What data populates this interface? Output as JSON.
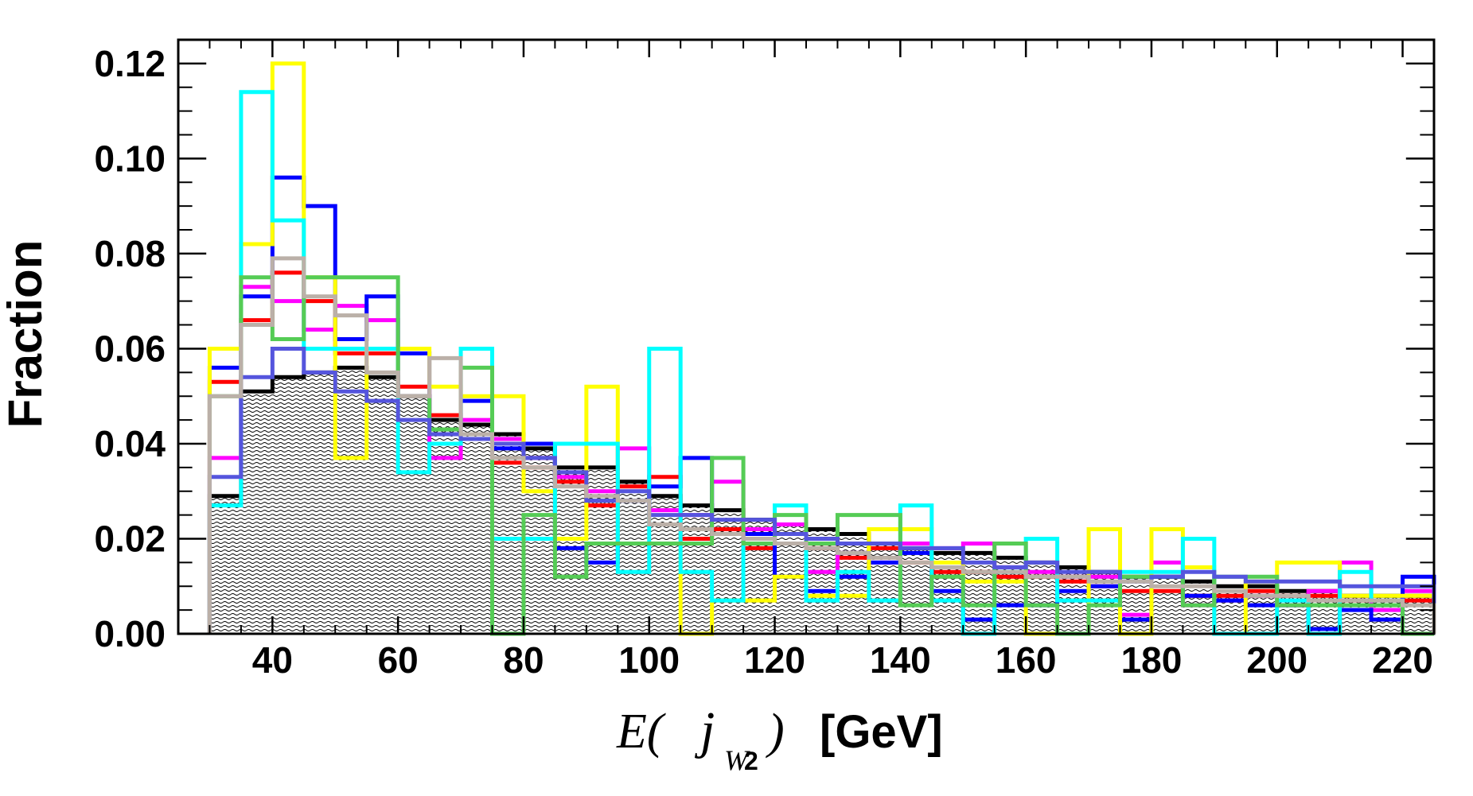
{
  "chart_data": {
    "type": "histogram",
    "ylabel": "Fraction",
    "xlabel": {
      "prefix": "E(",
      "symbol": "j",
      "subscript_w": "W",
      "subscript_2": "2",
      "suffix": ")",
      "unit": "[GeV]"
    },
    "xlim": [
      25,
      225
    ],
    "ylim": [
      0,
      0.125
    ],
    "x_ticks": [
      40,
      60,
      80,
      100,
      120,
      140,
      160,
      180,
      200,
      220
    ],
    "y_ticks": [
      "0.00",
      "0.02",
      "0.04",
      "0.06",
      "0.08",
      "0.10",
      "0.12"
    ],
    "y_tick_values": [
      0,
      0.02,
      0.04,
      0.06,
      0.08,
      0.1,
      0.12
    ],
    "bin_edges": [
      30,
      35,
      40,
      45,
      50,
      55,
      60,
      65,
      70,
      75,
      80,
      85,
      90,
      95,
      100,
      105,
      110,
      115,
      120,
      125,
      130,
      135,
      140,
      145,
      150,
      155,
      160,
      165,
      170,
      175,
      180,
      185,
      190,
      195,
      200,
      205,
      210,
      215,
      220,
      225
    ],
    "series": [
      {
        "color": "#000000",
        "filled": true,
        "values": [
          0.029,
          0.051,
          0.054,
          0.055,
          0.056,
          0.054,
          0.05,
          0.045,
          0.044,
          0.042,
          0.039,
          0.035,
          0.035,
          0.032,
          0.029,
          0.027,
          0.026,
          0.024,
          0.023,
          0.022,
          0.021,
          0.019,
          0.018,
          0.017,
          0.017,
          0.016,
          0.015,
          0.014,
          0.013,
          0.012,
          0.012,
          0.011,
          0.01,
          0.01,
          0.009,
          0.009,
          0.008,
          0.008,
          0.008
        ]
      },
      {
        "color": "#ff0000",
        "filled": false,
        "values": [
          0.053,
          0.066,
          0.076,
          0.07,
          0.059,
          0.059,
          0.052,
          0.046,
          0.042,
          0.036,
          0.035,
          0.032,
          0.027,
          0.031,
          0.033,
          0.02,
          0.022,
          0.018,
          0.021,
          0.018,
          0.016,
          0.018,
          0.015,
          0.013,
          0.013,
          0.012,
          0.012,
          0.011,
          0.01,
          0.009,
          0.009,
          0.008,
          0.008,
          0.009,
          0.008,
          0.008,
          0.007,
          0.007,
          0.007
        ]
      },
      {
        "color": "#ff00ff",
        "filled": false,
        "values": [
          0.037,
          0.073,
          0.07,
          0.064,
          0.069,
          0.066,
          0.05,
          0.037,
          0.045,
          0.041,
          0.037,
          0.033,
          0.03,
          0.039,
          0.026,
          0.025,
          0.032,
          0.022,
          0.023,
          0.013,
          0.017,
          0.015,
          0.019,
          0.018,
          0.019,
          0.014,
          0.013,
          0.012,
          0.012,
          0.004,
          0.015,
          0.006,
          0.007,
          0.008,
          0.006,
          0.009,
          0.015,
          0.005,
          0.009
        ]
      },
      {
        "color": "#0000ff",
        "filled": false,
        "values": [
          0.056,
          0.071,
          0.096,
          0.09,
          0.062,
          0.071,
          0.059,
          0.043,
          0.049,
          0.039,
          0.04,
          0.018,
          0.015,
          0.028,
          0.031,
          0.037,
          0.021,
          0.021,
          0.012,
          0.009,
          0.012,
          0.015,
          0.017,
          0.009,
          0.003,
          0.006,
          0.006,
          0.009,
          0.01,
          0.003,
          0.012,
          0.008,
          0.007,
          0.006,
          0.006,
          0.001,
          0.005,
          0.003,
          0.012
        ]
      },
      {
        "color": "#ffff00",
        "filled": false,
        "values": [
          0.06,
          0.082,
          0.12,
          0.075,
          0.037,
          0.06,
          0.06,
          0.052,
          0.05,
          0.05,
          0.03,
          0.02,
          0.052,
          0.019,
          0.019,
          0.0,
          0.007,
          0.007,
          0.012,
          0.008,
          0.008,
          0.022,
          0.022,
          0.015,
          0.011,
          0.011,
          0.0,
          0.0,
          0.022,
          0.0,
          0.022,
          0.014,
          0.0,
          0.011,
          0.015,
          0.015,
          0.008,
          0.008,
          0.008
        ]
      },
      {
        "color": "#00ffff",
        "filled": false,
        "values": [
          0.027,
          0.114,
          0.087,
          0.06,
          0.06,
          0.06,
          0.034,
          0.04,
          0.06,
          0.02,
          0.02,
          0.04,
          0.04,
          0.013,
          0.06,
          0.013,
          0.007,
          0.02,
          0.027,
          0.007,
          0.013,
          0.007,
          0.027,
          0.007,
          0.0,
          0.013,
          0.02,
          0.007,
          0.007,
          0.013,
          0.013,
          0.02,
          0.0,
          0.0,
          0.007,
          0.0,
          0.013,
          0.007,
          0.0
        ]
      },
      {
        "color": "#55cc55",
        "filled": false,
        "values": [
          0.05,
          0.075,
          0.062,
          0.075,
          0.075,
          0.075,
          0.05,
          0.043,
          0.056,
          0.0,
          0.025,
          0.012,
          0.019,
          0.019,
          0.019,
          0.019,
          0.037,
          0.019,
          0.025,
          0.019,
          0.025,
          0.025,
          0.006,
          0.012,
          0.006,
          0.019,
          0.006,
          0.0,
          0.006,
          0.012,
          0.012,
          0.006,
          0.012,
          0.012,
          0.006,
          0.006,
          0.006,
          0.006,
          0.0
        ]
      },
      {
        "color": "#5555dd",
        "filled": false,
        "values": [
          0.033,
          0.054,
          0.06,
          0.055,
          0.051,
          0.049,
          0.045,
          0.042,
          0.041,
          0.04,
          0.037,
          0.034,
          0.028,
          0.03,
          0.025,
          0.025,
          0.024,
          0.024,
          0.021,
          0.02,
          0.019,
          0.019,
          0.018,
          0.018,
          0.015,
          0.014,
          0.015,
          0.013,
          0.013,
          0.011,
          0.012,
          0.013,
          0.012,
          0.011,
          0.011,
          0.011,
          0.01,
          0.01,
          0.01
        ]
      },
      {
        "color": "#bbb0a8",
        "filled": false,
        "values": [
          0.05,
          0.065,
          0.079,
          0.071,
          0.067,
          0.055,
          0.05,
          0.058,
          0.042,
          0.037,
          0.035,
          0.031,
          0.029,
          0.028,
          0.023,
          0.022,
          0.021,
          0.02,
          0.019,
          0.018,
          0.017,
          0.016,
          0.015,
          0.014,
          0.013,
          0.013,
          0.012,
          0.012,
          0.011,
          0.011,
          0.01,
          0.01,
          0.009,
          0.008,
          0.008,
          0.007,
          0.007,
          0.007,
          0.006
        ]
      }
    ]
  }
}
